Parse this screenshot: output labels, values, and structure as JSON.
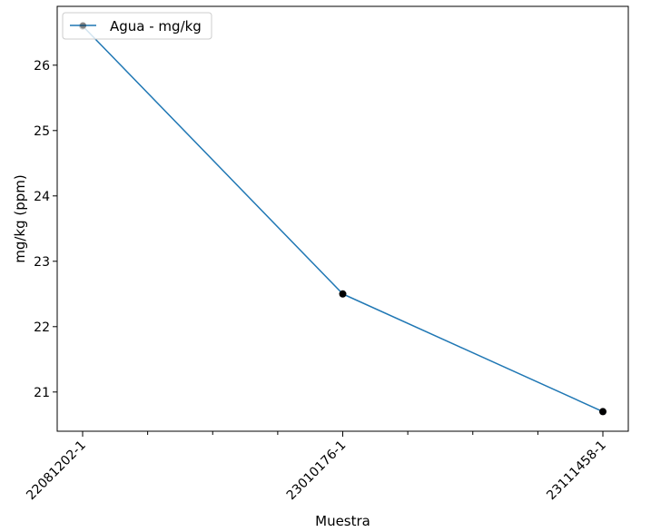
{
  "chart_data": {
    "type": "line",
    "title": "",
    "xlabel": "Muestra",
    "ylabel": "mg/kg (ppm)",
    "categories": [
      "22081202-1",
      "23010176-1",
      "23111458-1"
    ],
    "series": [
      {
        "name": "Agua - mg/kg",
        "values": [
          26.6,
          22.5,
          20.7
        ],
        "color": "#1f77b4"
      }
    ],
    "marker_color": "#000000",
    "ylim": [
      20.4,
      26.9
    ],
    "yticks": [
      21,
      22,
      23,
      24,
      25,
      26
    ],
    "grid": false,
    "legend_position": "top-left"
  }
}
